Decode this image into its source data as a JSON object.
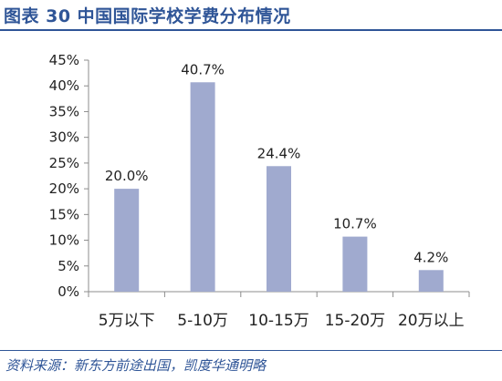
{
  "title": "图表 30 中国国际学校学费分布情况",
  "source": "资料来源：新东方前途出国，凯度华通明略",
  "colors": {
    "bar": "#a0aacf",
    "title": "#2f5597",
    "axis": "#8c8c8c"
  },
  "chart_data": {
    "type": "bar",
    "categories": [
      "5万以下",
      "5-10万",
      "10-15万",
      "15-20万",
      "20万以上"
    ],
    "values": [
      20.0,
      40.7,
      24.4,
      10.7,
      4.2
    ],
    "data_labels": [
      "20.0%",
      "40.7%",
      "24.4%",
      "10.7%",
      "4.2%"
    ],
    "ylim": [
      0,
      45
    ],
    "yticks": [
      0,
      5,
      10,
      15,
      20,
      25,
      30,
      35,
      40,
      45
    ],
    "ytick_labels": [
      "0%",
      "5%",
      "10%",
      "15%",
      "20%",
      "25%",
      "30%",
      "35%",
      "40%",
      "45%"
    ],
    "grid": false,
    "legend": "none"
  }
}
